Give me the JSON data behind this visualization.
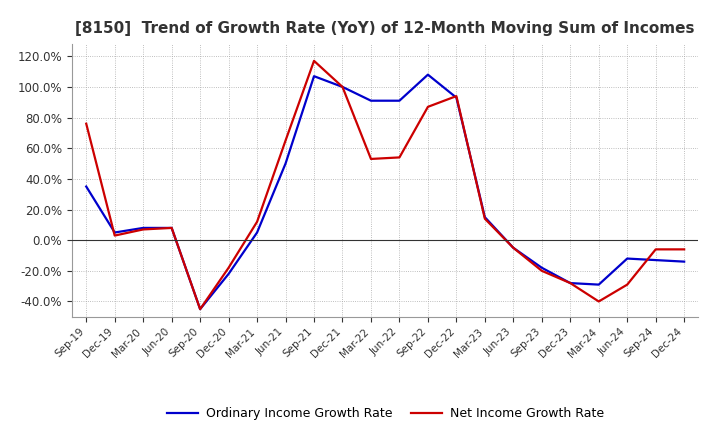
{
  "title": "[8150]  Trend of Growth Rate (YoY) of 12-Month Moving Sum of Incomes",
  "title_fontsize": 11,
  "ylim": [
    -0.5,
    1.28
  ],
  "yticks": [
    -0.4,
    -0.2,
    0.0,
    0.2,
    0.4,
    0.6,
    0.8,
    1.0,
    1.2
  ],
  "background_color": "#ffffff",
  "grid_color": "#aaaaaa",
  "ordinary_color": "#0000cc",
  "net_color": "#cc0000",
  "legend_ordinary": "Ordinary Income Growth Rate",
  "legend_net": "Net Income Growth Rate",
  "x_labels": [
    "Sep-19",
    "Dec-19",
    "Mar-20",
    "Jun-20",
    "Sep-20",
    "Dec-20",
    "Mar-21",
    "Jun-21",
    "Sep-21",
    "Dec-21",
    "Mar-22",
    "Jun-22",
    "Sep-22",
    "Dec-22",
    "Mar-23",
    "Jun-23",
    "Sep-23",
    "Dec-23",
    "Mar-24",
    "Jun-24",
    "Sep-24",
    "Dec-24"
  ],
  "ordinary_income": [
    0.35,
    0.05,
    0.08,
    0.08,
    -0.45,
    -0.22,
    0.05,
    0.5,
    1.07,
    1.0,
    0.91,
    0.91,
    1.08,
    0.93,
    0.15,
    -0.05,
    -0.18,
    -0.28,
    -0.29,
    -0.12,
    -0.13,
    -0.14
  ],
  "net_income": [
    0.76,
    0.03,
    0.07,
    0.08,
    -0.45,
    -0.18,
    0.12,
    0.65,
    1.17,
    1.0,
    0.53,
    0.54,
    0.87,
    0.94,
    0.14,
    -0.05,
    -0.2,
    -0.28,
    -0.4,
    -0.29,
    -0.06,
    -0.06
  ]
}
